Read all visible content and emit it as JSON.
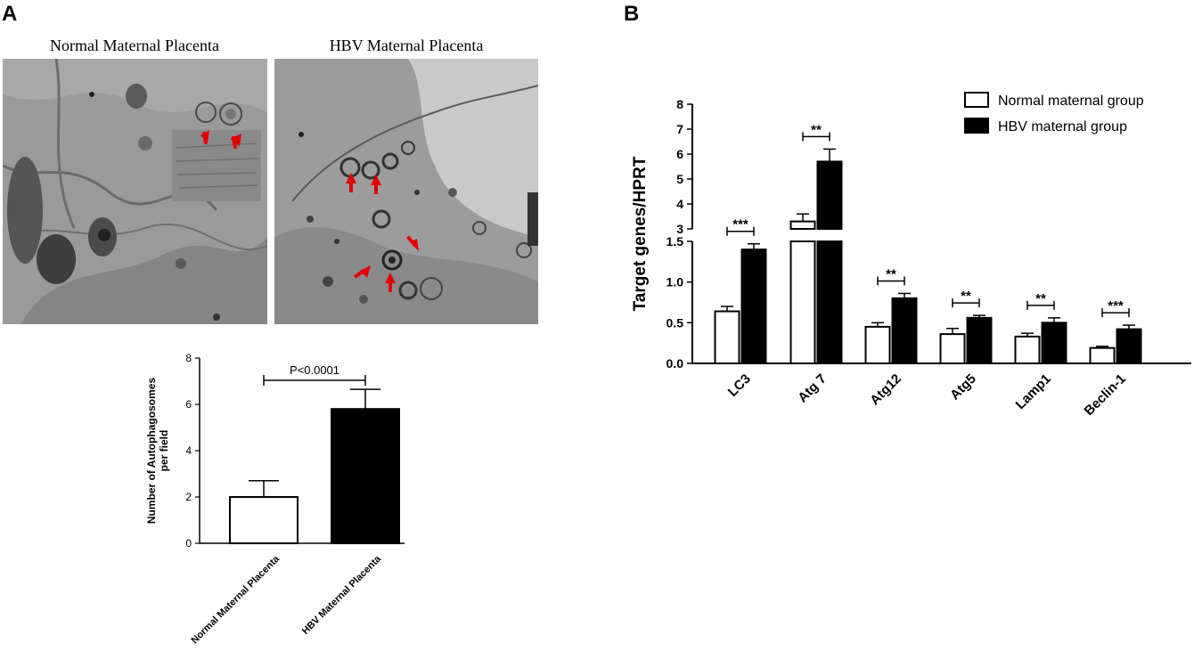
{
  "panel_a": {
    "letter": "A",
    "micrographs": [
      {
        "title": "Normal Maternal Placenta"
      },
      {
        "title": "HBV Maternal Placenta"
      }
    ]
  },
  "panel_b": {
    "letter": "B"
  },
  "chart_data": [
    {
      "type": "bar",
      "ylabel": "Number of Autophagosomes per field",
      "ylabel_lines": [
        "Number of Autophagosomes",
        "per field"
      ],
      "categories": [
        "Normal Maternal Placenta",
        "HBV Maternal Placenta"
      ],
      "values": [
        2.0,
        5.8
      ],
      "errors": [
        0.7,
        0.85
      ],
      "bar_colors": [
        "#ffffff",
        "#000000"
      ],
      "ylim": [
        0,
        8
      ],
      "yticks": [
        0,
        2,
        4,
        6,
        8
      ],
      "annotation": "P<0.0001"
    },
    {
      "type": "bar",
      "ylabel": "Target genes/HPRT",
      "categories": [
        "LC3",
        "Atg 7",
        "Atg12",
        "Atg5",
        "Lamp1",
        "Beclin-1"
      ],
      "series": [
        {
          "name": "Normal maternal group",
          "color": "#ffffff",
          "values": [
            0.64,
            3.3,
            0.45,
            0.36,
            0.33,
            0.19
          ],
          "errors": [
            0.06,
            0.3,
            0.05,
            0.07,
            0.04,
            0.02
          ]
        },
        {
          "name": "HBV maternal group",
          "color": "#000000",
          "values": [
            1.4,
            5.7,
            0.8,
            0.56,
            0.5,
            0.42
          ],
          "errors": [
            0.07,
            0.5,
            0.06,
            0.03,
            0.06,
            0.05
          ]
        }
      ],
      "significance": [
        "***",
        "**",
        "**",
        "**",
        "**",
        "***"
      ],
      "axis_break": {
        "lower": [
          0,
          1.5
        ],
        "upper": [
          3,
          8
        ]
      },
      "yticks_lower": [
        "0.0",
        "0.5",
        "1.0",
        "1.5"
      ],
      "yticks_upper": [
        "3",
        "4",
        "5",
        "6",
        "7",
        "8"
      ],
      "legend_position": "top-right"
    }
  ]
}
